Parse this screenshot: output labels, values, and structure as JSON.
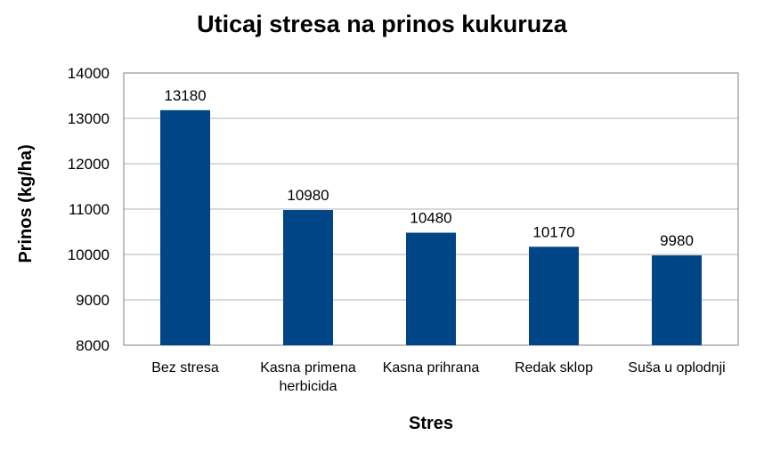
{
  "chart_data": {
    "type": "bar",
    "title": "Uticaj stresa na prinos kukuruza",
    "xlabel": "Stres",
    "ylabel": "Prinos (kg/ha)",
    "categories": [
      [
        "Bez stresa"
      ],
      [
        "Kasna primena",
        "herbicida"
      ],
      [
        "Kasna prihrana"
      ],
      [
        "Redak sklop"
      ],
      [
        "Suša u oplodnji"
      ]
    ],
    "values": [
      13180,
      10980,
      10480,
      10170,
      9980
    ],
    "data_labels": [
      "13180",
      "10980",
      "10480",
      "10170",
      "9980"
    ],
    "ylim": [
      8000,
      14000
    ],
    "yticks": [
      8000,
      9000,
      10000,
      11000,
      12000,
      13000,
      14000
    ],
    "grid": true,
    "legend": "none",
    "colors": {
      "bar": "#004586",
      "grid": "#b3b3b3",
      "axis": "#808080"
    }
  }
}
